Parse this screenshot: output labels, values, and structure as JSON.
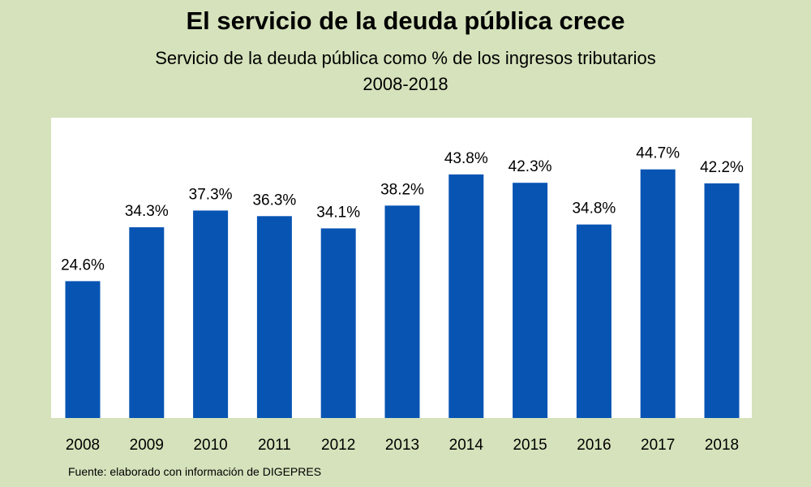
{
  "title": "El servicio de la deuda pública crece",
  "subtitle": "Servicio de la deuda pública como % de los ingresos tributarios",
  "period": "2008-2018",
  "source": "Fuente: elaborado con información de DIGEPRES",
  "colors": {
    "background": "#d5e2bb",
    "plot_background": "#ffffff",
    "bar": "#0754b3"
  },
  "chart_data": {
    "type": "bar",
    "title": "El servicio de la deuda pública crece",
    "subtitle": "Servicio de la deuda pública como % de los ingresos tributarios 2008-2018",
    "categories": [
      "2008",
      "2009",
      "2010",
      "2011",
      "2012",
      "2013",
      "2014",
      "2015",
      "2016",
      "2017",
      "2018"
    ],
    "values": [
      24.6,
      34.3,
      37.3,
      36.3,
      34.1,
      38.2,
      43.8,
      42.3,
      34.8,
      44.7,
      42.2
    ],
    "data_labels": [
      "24.6%",
      "34.3%",
      "37.3%",
      "36.3%",
      "34.1%",
      "38.2%",
      "43.8%",
      "42.3%",
      "34.8%",
      "44.7%",
      "42.2%"
    ],
    "xlabel": "",
    "ylabel": "",
    "ylim": [
      0,
      54
    ],
    "grid": false,
    "legend": "none"
  }
}
